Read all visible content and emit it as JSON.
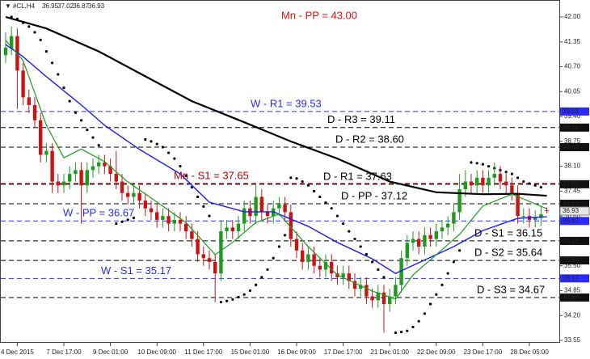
{
  "chart_data": {
    "type": "candlestick",
    "symbol": "#CL,H4",
    "top_label": "Mn - PP = 43.00",
    "ylim": [
      33.55,
      42.0
    ],
    "yticks": [
      {
        "value": 42.0,
        "label": "42.00"
      },
      41.35,
      {
        "value": 40.7,
        "label": "40.70"
      },
      40.05,
      {
        "value": 39.4,
        "label": "39.40"
      },
      38.75,
      {
        "value": 38.1,
        "label": "38.10"
      },
      37.45,
      {
        "value": 36.8,
        "label": "36.80"
      },
      36.15,
      {
        "value": 35.5,
        "label": "35.50"
      },
      34.85,
      {
        "value": 34.2,
        "label": "34.20"
      },
      33.55
    ],
    "categories": [
      null,
      null,
      "4 Dec 2015",
      null,
      null,
      null,
      null,
      null,
      null,
      null,
      "7 Dec 17:00",
      null,
      null,
      null,
      null,
      null,
      null,
      null,
      "9 Dec 01:00",
      null,
      null,
      null,
      null,
      null,
      null,
      null,
      "10 Dec 09:00",
      null,
      null,
      null,
      null,
      null,
      null,
      null,
      "11 Dec 17:00",
      null,
      null,
      null,
      null,
      null,
      null,
      null,
      "15 Dec 01:00",
      null,
      null,
      null,
      null,
      null,
      null,
      null,
      "16 Dec 09:00",
      null,
      null,
      null,
      null,
      null,
      null,
      null,
      "17 Dec 17:00",
      null,
      null,
      null,
      null,
      null,
      null,
      null,
      "21 Dec 01:00",
      null,
      null,
      null,
      null,
      null,
      null,
      null,
      "22 Dec 09:00",
      null,
      null,
      null,
      null,
      null,
      null,
      null,
      "23 Dec 17:00",
      null,
      null,
      null,
      null,
      null,
      null,
      null,
      "28 Dec 05:00",
      null,
      null,
      null
    ],
    "up_color": "#1f9a1f",
    "down_color": "#c81414",
    "open": [
      41.0,
      41.2,
      41.5,
      40.6,
      39.9,
      39.7,
      39.3,
      38.4,
      38.5,
      37.7,
      37.6,
      37.7,
      37.9,
      38.0,
      37.6,
      38.0,
      38.1,
      38.2,
      38.1,
      37.9,
      37.7,
      37.4,
      37.3,
      37.4,
      37.2,
      37.0,
      36.9,
      36.7,
      36.8,
      36.6,
      36.7,
      36.6,
      36.4,
      36.2,
      35.8,
      35.7,
      35.6,
      35.3,
      36.4,
      36.5,
      36.4,
      36.6,
      37.0,
      36.8,
      37.3,
      36.9,
      36.8,
      37.0,
      37.1,
      36.9,
      36.2,
      35.9,
      35.6,
      35.8,
      35.5,
      35.4,
      35.6,
      35.3,
      35.2,
      35.3,
      35.1,
      34.9,
      35.0,
      34.7,
      34.6,
      34.8,
      34.5,
      34.7,
      35.0,
      35.7,
      36.1,
      36.2,
      36.0,
      36.3,
      36.2,
      36.4,
      36.5,
      36.6,
      36.9,
      37.5,
      37.7,
      37.6,
      37.8,
      37.6,
      37.8,
      37.9,
      37.7,
      37.6,
      37.4,
      36.8,
      36.8,
      36.7,
      36.75,
      36.95
    ],
    "high": [
      41.6,
      41.75,
      41.7,
      40.8,
      40.1,
      39.9,
      39.5,
      38.7,
      38.7,
      37.9,
      37.9,
      38.1,
      38.2,
      38.2,
      38.2,
      38.3,
      38.4,
      38.4,
      38.3,
      38.5,
      37.9,
      37.6,
      37.6,
      37.6,
      37.4,
      37.2,
      37.1,
      37.0,
      37.0,
      36.9,
      36.9,
      36.8,
      36.6,
      36.4,
      36.0,
      35.9,
      35.8,
      36.7,
      36.7,
      36.7,
      36.8,
      37.2,
      37.2,
      37.65,
      37.5,
      37.1,
      37.2,
      37.3,
      37.3,
      37.1,
      36.4,
      36.1,
      36.0,
      36.0,
      35.7,
      35.8,
      35.8,
      35.5,
      35.5,
      35.5,
      35.3,
      35.2,
      35.2,
      34.9,
      35.0,
      35.0,
      34.9,
      35.2,
      35.9,
      36.3,
      36.4,
      36.4,
      36.5,
      36.5,
      36.6,
      36.7,
      36.8,
      37.1,
      37.9,
      38.0,
      37.9,
      38.0,
      38.0,
      38.0,
      38.2,
      38.1,
      37.9,
      37.8,
      37.6,
      37.0,
      37.0,
      36.95,
      37.05,
      37.02
    ],
    "low": [
      40.8,
      41.0,
      39.6,
      39.7,
      39.5,
      39.1,
      38.2,
      38.2,
      37.4,
      37.4,
      37.4,
      37.5,
      37.7,
      36.6,
      37.4,
      37.8,
      37.9,
      37.9,
      37.7,
      37.5,
      37.2,
      37.1,
      37.1,
      37.0,
      36.8,
      36.7,
      36.5,
      36.5,
      36.4,
      36.4,
      36.4,
      36.2,
      36.0,
      35.6,
      35.5,
      35.4,
      34.55,
      35.1,
      36.2,
      36.2,
      36.2,
      36.4,
      36.6,
      36.6,
      36.7,
      36.6,
      36.6,
      36.8,
      36.7,
      36.0,
      35.7,
      35.4,
      35.4,
      35.3,
      35.2,
      35.2,
      35.1,
      35.0,
      35.0,
      34.9,
      34.7,
      34.7,
      34.5,
      34.4,
      34.4,
      33.75,
      34.3,
      34.5,
      34.8,
      35.5,
      35.9,
      35.8,
      35.8,
      36.0,
      36.0,
      36.2,
      36.3,
      36.4,
      36.7,
      37.3,
      37.4,
      37.4,
      37.4,
      37.4,
      37.6,
      37.5,
      37.4,
      37.2,
      36.6,
      36.6,
      36.5,
      36.5,
      36.55,
      36.87
    ],
    "close": [
      41.2,
      41.5,
      40.6,
      39.9,
      39.7,
      39.3,
      38.4,
      38.5,
      37.7,
      37.6,
      37.7,
      37.9,
      38.0,
      37.6,
      38.0,
      38.1,
      38.2,
      38.1,
      37.9,
      37.7,
      37.4,
      37.3,
      37.4,
      37.2,
      37.0,
      36.9,
      36.7,
      36.8,
      36.6,
      36.7,
      36.6,
      36.4,
      36.2,
      35.8,
      35.7,
      35.6,
      35.3,
      36.4,
      36.5,
      36.4,
      36.6,
      37.0,
      36.8,
      37.3,
      36.9,
      36.8,
      37.0,
      37.1,
      36.9,
      36.2,
      35.9,
      35.6,
      35.8,
      35.5,
      35.4,
      35.6,
      35.3,
      35.2,
      35.3,
      35.1,
      34.9,
      35.0,
      34.7,
      34.6,
      34.8,
      34.5,
      34.7,
      35.0,
      35.7,
      36.1,
      36.2,
      36.0,
      36.3,
      36.2,
      36.4,
      36.5,
      36.6,
      36.9,
      37.5,
      37.7,
      37.6,
      37.8,
      37.6,
      37.8,
      37.9,
      37.7,
      37.6,
      37.4,
      36.8,
      36.8,
      36.7,
      36.75,
      36.85,
      36.93
    ],
    "lines": [
      {
        "color": "#000000",
        "width": 2.2,
        "x": [
          0,
          7,
          16,
          24,
          32,
          41,
          49,
          57,
          66,
          74,
          82,
          88,
          93
        ],
        "values": [
          42.0,
          41.7,
          41.1,
          40.45,
          39.8,
          39.25,
          38.75,
          38.3,
          37.7,
          37.42,
          37.37,
          37.38,
          37.33
        ]
      },
      {
        "color": "#1a1aff",
        "width": 1.4,
        "x": [
          0,
          3,
          7,
          13,
          17,
          23,
          30,
          35,
          41,
          46,
          52,
          57,
          63,
          67,
          71,
          77,
          82,
          88,
          93
        ],
        "values": [
          41.28,
          40.96,
          40.44,
          39.7,
          39.17,
          38.54,
          37.9,
          37.16,
          36.91,
          36.91,
          36.53,
          36.11,
          35.68,
          35.3,
          35.58,
          36.0,
          36.42,
          36.74,
          36.78
        ]
      },
      {
        "color": "#1c9c1c",
        "width": 1.2,
        "x": [
          0,
          3,
          7,
          10,
          13,
          17,
          21,
          25,
          31,
          36,
          39,
          43,
          47,
          52,
          57,
          63,
          67,
          70,
          74,
          78,
          82,
          87,
          93
        ],
        "values": [
          41.39,
          40.86,
          39.17,
          38.32,
          38.55,
          38.22,
          37.69,
          37.27,
          36.63,
          35.79,
          36.11,
          36.63,
          36.85,
          36.0,
          35.26,
          34.84,
          34.63,
          35.26,
          35.79,
          36.32,
          37.06,
          37.37,
          36.99
        ]
      }
    ],
    "sar": {
      "color": "#000000",
      "x": [
        1,
        2,
        3,
        4,
        5,
        6,
        7,
        8,
        9,
        10,
        11,
        12,
        13,
        14,
        15,
        16,
        19,
        20,
        21,
        22,
        24,
        25,
        26,
        27,
        28,
        29,
        30,
        31,
        32,
        33,
        34,
        35,
        37,
        38,
        39,
        40,
        41,
        42,
        43,
        44,
        45,
        46,
        47,
        48,
        49,
        50,
        51,
        52,
        53,
        54,
        55,
        56,
        57,
        58,
        59,
        60,
        61,
        62,
        63,
        64,
        65,
        67,
        68,
        69,
        70,
        71,
        72,
        73,
        74,
        75,
        76,
        77,
        78,
        80,
        81,
        82,
        83,
        84,
        85,
        86,
        87,
        88,
        89,
        90,
        91,
        92
      ],
      "values": [
        42.0,
        41.95,
        41.85,
        41.75,
        41.6,
        41.4,
        41.1,
        40.8,
        40.5,
        40.15,
        39.8,
        39.5,
        39.3,
        39.05,
        38.85,
        38.65,
        36.6,
        36.65,
        36.7,
        36.75,
        38.8,
        38.75,
        38.68,
        38.6,
        38.45,
        38.3,
        38.1,
        37.85,
        37.55,
        37.3,
        37.05,
        36.8,
        34.55,
        34.58,
        34.62,
        34.68,
        34.75,
        34.85,
        35.0,
        35.2,
        35.4,
        35.7,
        36.0,
        36.3,
        37.8,
        37.78,
        37.7,
        37.6,
        37.45,
        37.3,
        37.15,
        37.0,
        36.8,
        36.6,
        36.4,
        36.2,
        36.0,
        35.8,
        35.6,
        35.4,
        35.2,
        33.75,
        33.77,
        33.8,
        33.9,
        34.05,
        34.25,
        34.5,
        34.75,
        35.0,
        35.3,
        35.6,
        35.9,
        38.2,
        38.18,
        38.15,
        38.1,
        38.05,
        38.0,
        37.95,
        37.9,
        37.8,
        37.7,
        37.65,
        37.6,
        37.55
      ]
    },
    "levels": [
      {
        "text": "W - R1 = 39.53",
        "value": 39.53,
        "axis_label": "39.53",
        "color": "#2a2aff"
      },
      {
        "text": "D - R3 = 39.11",
        "value": 39.11,
        "axis_label": "39.11",
        "color": "#000000"
      },
      {
        "text": "D - R2 = 38.60",
        "value": 38.6,
        "axis_label": "38.60",
        "color": "#000000"
      },
      {
        "text": "Mn - S1 = 37.65",
        "value": 37.65,
        "color": "#b00000"
      },
      {
        "text": "D - R1 = 37.63",
        "value": 37.63,
        "axis_label": "37.63",
        "color": "#000000"
      },
      {
        "text": "D - PP - 37.12",
        "value": 37.12,
        "axis_label": "37.12",
        "color": "#000000"
      },
      {
        "text": "W - PP = 36.67",
        "value": 36.67,
        "axis_label": "36.67",
        "color": "#2a2aff"
      },
      {
        "text": "D - S1 = 36.15",
        "value": 36.15,
        "axis_label": "36.15",
        "color": "#000000"
      },
      {
        "text": "D - S2 = 35.64",
        "value": 35.64,
        "axis_label": "35.64",
        "color": "#000000"
      },
      {
        "text": "W - S1 = 35.17",
        "value": 35.17,
        "axis_label": "35.17",
        "color": "#2a2aff"
      },
      {
        "text": "D - S3 = 34.67",
        "value": 34.67,
        "axis_label": "34.67",
        "color": "#000000"
      }
    ]
  }
}
